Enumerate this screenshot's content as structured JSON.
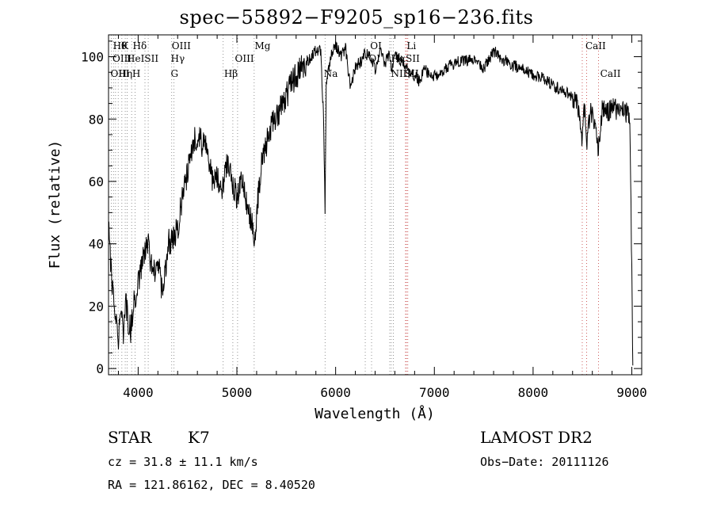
{
  "chart_data": {
    "type": "line",
    "title": "spec−55892−F9205_sp16−236.fits",
    "xlabel": "Wavelength (Å)",
    "ylabel": "Flux (relative)",
    "xlim": [
      3700,
      9100
    ],
    "ylim": [
      -2,
      107
    ],
    "x_ticks": [
      4000,
      5000,
      6000,
      7000,
      8000,
      9000
    ],
    "y_ticks": [
      0,
      20,
      40,
      60,
      80,
      100
    ],
    "grid": false,
    "series": [
      {
        "x": [
          3700,
          3725,
          3750,
          3775,
          3800,
          3825,
          3850,
          3875,
          3900,
          3925,
          3950,
          3975,
          4000,
          4050,
          4100,
          4150,
          4200,
          4250,
          4300,
          4350,
          4400,
          4450,
          4500,
          4550,
          4600,
          4650,
          4700,
          4750,
          4800,
          4850,
          4900,
          4950,
          5000,
          5050,
          5100,
          5150,
          5175,
          5200,
          5250,
          5300,
          5350,
          5400,
          5450,
          5500,
          5550,
          5600,
          5650,
          5700,
          5750,
          5800,
          5850,
          5880,
          5893,
          5905,
          5950,
          6000,
          6050,
          6100,
          6150,
          6200,
          6250,
          6300,
          6350,
          6400,
          6450,
          6500,
          6550,
          6563,
          6600,
          6650,
          6700,
          6750,
          6800,
          6850,
          6900,
          6950,
          7000,
          7100,
          7200,
          7300,
          7400,
          7500,
          7600,
          7700,
          7800,
          7900,
          8000,
          8100,
          8200,
          8300,
          8400,
          8450,
          8498,
          8520,
          8542,
          8580,
          8620,
          8662,
          8700,
          8750,
          8800,
          8850,
          8900,
          8950,
          8980,
          9000,
          9010
        ],
        "y": [
          45,
          33,
          22,
          15,
          10,
          18,
          12,
          22,
          15,
          12,
          20,
          24,
          28,
          35,
          40,
          30,
          35,
          22,
          40,
          42,
          45,
          55,
          62,
          72,
          75,
          72,
          70,
          60,
          62,
          58,
          65,
          60,
          55,
          60,
          52,
          48,
          38,
          50,
          66,
          72,
          78,
          80,
          84,
          87,
          91,
          94,
          96,
          98,
          100,
          102,
          102,
          78,
          50,
          92,
          100,
          104,
          100,
          103,
          90,
          97,
          98,
          101,
          100,
          96,
          102,
          98,
          101,
          95,
          100,
          99,
          98,
          94,
          94,
          92,
          96,
          94,
          94,
          96,
          98,
          99,
          99,
          96,
          102,
          99,
          97,
          96,
          94,
          93,
          91,
          89,
          87,
          85,
          72,
          84,
          71,
          83,
          80,
          70,
          83,
          82,
          84,
          83,
          84,
          82,
          81,
          30,
          1
        ],
        "color": "#000000"
      }
    ],
    "line_labels_top": [
      "Hθ",
      "K",
      "Hδ",
      "OIII",
      "Mg",
      "OI",
      "Li",
      "CaII"
    ],
    "line_labels_mid": [
      "OIII",
      "HeISII",
      "Hγ",
      "OIII",
      "OI",
      "Hα",
      "SII"
    ],
    "line_labels_low": [
      "OIII",
      "Hη",
      "H",
      "G",
      "Hβ",
      "Na",
      "NII",
      "SII",
      "CaII"
    ],
    "line_wavelengths": [
      3727,
      3750,
      3771,
      3798,
      3835,
      3869,
      3889,
      3934,
      3969,
      4069,
      4102,
      4340,
      4363,
      4861,
      4959,
      5007,
      5175,
      5893,
      6300,
      6364,
      6548,
      6563,
      6584,
      6708,
      6717,
      6731,
      8498,
      8542,
      8662
    ],
    "line_color": "#c23a3a"
  },
  "footer": {
    "object": "STAR",
    "subclass": "K7",
    "survey": "LAMOST DR2",
    "cz": "cz = 31.8 ± 11.1 km/s",
    "obs_date": "Obs−Date: 20111126",
    "coords": "RA = 121.86162, DEC =   8.40520"
  }
}
